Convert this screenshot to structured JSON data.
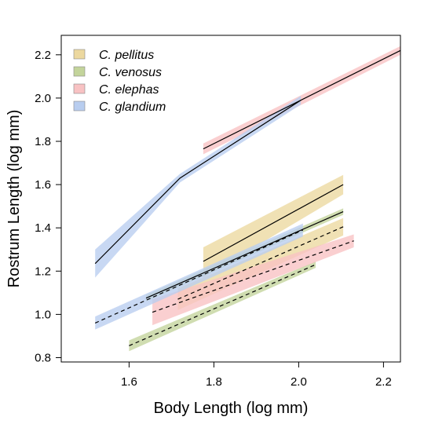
{
  "chart_data": {
    "type": "line",
    "title": "",
    "xlabel": "Body Length (log mm)",
    "ylabel": "Rostrum Length (log mm)",
    "xlim": [
      1.44,
      2.24
    ],
    "ylim": [
      0.78,
      2.29
    ],
    "xticks": [
      1.6,
      1.8,
      2.0,
      2.2
    ],
    "xtick_labels": [
      "1.6",
      "1.8",
      "2.0",
      "2.2"
    ],
    "yticks": [
      0.8,
      1.0,
      1.2,
      1.4,
      1.6,
      1.8,
      2.0,
      2.2
    ],
    "ytick_labels": [
      "0.8",
      "1.0",
      "1.2",
      "1.4",
      "1.6",
      "1.8",
      "2.0",
      "2.2"
    ],
    "grid": false,
    "legend_position": "top-left",
    "series": [
      {
        "name": "C. pellitus",
        "color": "#ecd89f",
        "lines": [
          {
            "style": "solid",
            "points": [
              [
                1.775,
                1.245
              ],
              [
                2.105,
                1.6
              ]
            ],
            "band": [
              [
                1.775,
                1.17,
                1.31
              ],
              [
                2.105,
                1.555,
                1.645
              ]
            ]
          },
          {
            "style": "dashed",
            "points": [
              [
                1.715,
                1.07
              ],
              [
                2.105,
                1.405
              ]
            ],
            "band": [
              [
                1.715,
                1.02,
                1.12
              ],
              [
                2.105,
                1.365,
                1.445
              ]
            ]
          }
        ]
      },
      {
        "name": "C. venosus",
        "color": "#c3d49b",
        "lines": [
          {
            "style": "solid",
            "points": [
              [
                1.64,
                1.075
              ],
              [
                2.105,
                1.475
              ]
            ],
            "band": [
              [
                1.64,
                1.06,
                1.09
              ],
              [
                2.105,
                1.46,
                1.49
              ]
            ]
          },
          {
            "style": "dashed",
            "points": [
              [
                1.6,
                0.855
              ],
              [
                2.04,
                1.23
              ]
            ],
            "band": [
              [
                1.6,
                0.83,
                0.88
              ],
              [
                2.04,
                1.215,
                1.245
              ]
            ]
          }
        ]
      },
      {
        "name": "C. elephas",
        "color": "#f8c2c3",
        "lines": [
          {
            "style": "solid",
            "points": [
              [
                1.775,
                1.765
              ],
              [
                2.24,
                2.22
              ]
            ],
            "band": [
              [
                1.775,
                1.74,
                1.79
              ],
              [
                2.24,
                2.2,
                2.24
              ]
            ]
          },
          {
            "style": "dashed",
            "points": [
              [
                1.655,
                1.01
              ],
              [
                2.13,
                1.34
              ]
            ],
            "band": [
              [
                1.655,
                0.95,
                1.07
              ],
              [
                2.13,
                1.31,
                1.37
              ]
            ]
          }
        ]
      },
      {
        "name": "C. glandium",
        "color": "#b8cdef",
        "lines": [
          {
            "style": "solid",
            "points": [
              [
                1.52,
                1.235
              ],
              [
                1.72,
                1.63
              ],
              [
                2.005,
                1.99
              ]
            ],
            "band": [
              [
                1.52,
                1.17,
                1.3
              ],
              [
                1.72,
                1.61,
                1.65
              ],
              [
                2.005,
                1.97,
                2.01
              ]
            ]
          },
          {
            "style": "dashed",
            "points": [
              [
                1.52,
                0.96
              ],
              [
                2.01,
                1.39
              ]
            ],
            "band": [
              [
                1.52,
                0.93,
                0.99
              ],
              [
                2.01,
                1.36,
                1.42
              ]
            ]
          }
        ]
      }
    ]
  }
}
